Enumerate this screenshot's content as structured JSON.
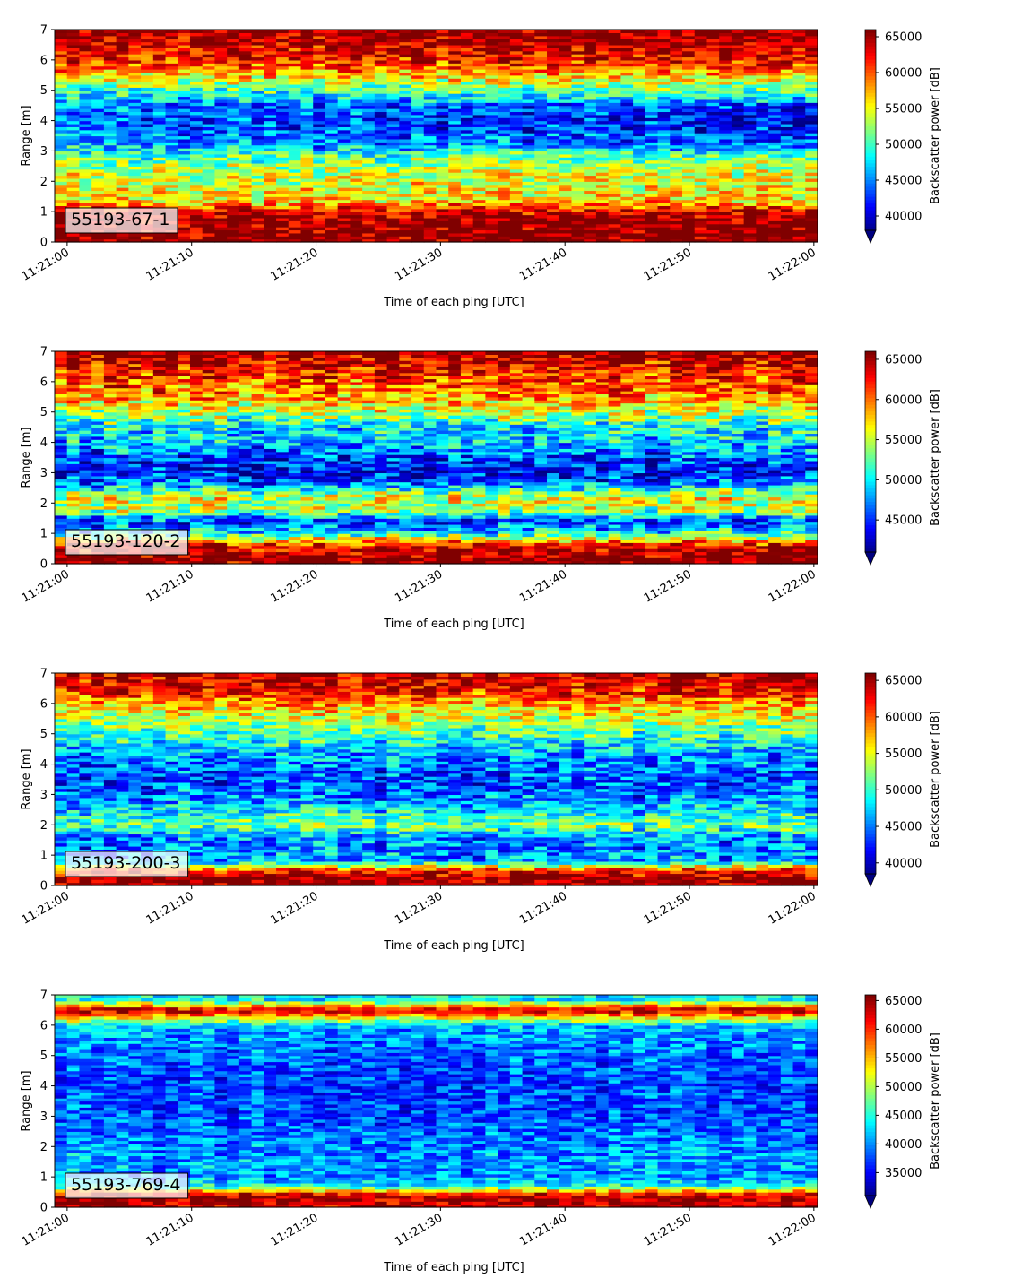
{
  "chart_data": [
    {
      "type": "heatmap",
      "label": "55193-67-1",
      "xlabel": "Time of each ping [UTC]",
      "ylabel": "Range [m]",
      "xticks": [
        "11:21:00",
        "11:21:10",
        "11:21:20",
        "11:21:30",
        "11:21:40",
        "11:21:50",
        "11:22:00"
      ],
      "xlim": [
        "11:21:00",
        "11:22:00"
      ],
      "yticks": [
        0,
        1,
        2,
        3,
        4,
        5,
        6,
        7
      ],
      "ylim": [
        0,
        7
      ],
      "colorbar": {
        "label": "Backscatter power [dB]",
        "ticks": [
          40000,
          45000,
          50000,
          55000,
          60000,
          65000
        ],
        "range": [
          38000,
          66000
        ],
        "extend": "min",
        "colormap": "jet"
      },
      "profile": [
        {
          "range_m": 0.2,
          "value": 66000
        },
        {
          "range_m": 0.6,
          "value": 66000
        },
        {
          "range_m": 1.0,
          "value": 64000
        },
        {
          "range_m": 1.3,
          "value": 57000
        },
        {
          "range_m": 1.8,
          "value": 55000
        },
        {
          "range_m": 2.3,
          "value": 54000
        },
        {
          "range_m": 2.8,
          "value": 51000
        },
        {
          "range_m": 3.2,
          "value": 47000
        },
        {
          "range_m": 3.7,
          "value": 45000
        },
        {
          "range_m": 4.1,
          "value": 44000
        },
        {
          "range_m": 4.6,
          "value": 46000
        },
        {
          "range_m": 5.0,
          "value": 50000
        },
        {
          "range_m": 5.5,
          "value": 57000
        },
        {
          "range_m": 6.0,
          "value": 62000
        },
        {
          "range_m": 6.5,
          "value": 64000
        },
        {
          "range_m": 7.0,
          "value": 66000
        }
      ]
    },
    {
      "type": "heatmap",
      "label": "55193-120-2",
      "xlabel": "Time of each ping [UTC]",
      "ylabel": "Range [m]",
      "xticks": [
        "11:21:00",
        "11:21:10",
        "11:21:20",
        "11:21:30",
        "11:21:40",
        "11:21:50",
        "11:22:00"
      ],
      "xlim": [
        "11:21:00",
        "11:22:00"
      ],
      "yticks": [
        0,
        1,
        2,
        3,
        4,
        5,
        6,
        7
      ],
      "ylim": [
        0,
        7
      ],
      "colorbar": {
        "label": "Backscatter power [dB]",
        "ticks": [
          45000,
          50000,
          55000,
          60000,
          65000
        ],
        "range": [
          41000,
          66000
        ],
        "extend": "min",
        "colormap": "jet"
      },
      "profile": [
        {
          "range_m": 0.2,
          "value": 66000
        },
        {
          "range_m": 0.6,
          "value": 64000
        },
        {
          "range_m": 1.0,
          "value": 51000
        },
        {
          "range_m": 1.4,
          "value": 45000
        },
        {
          "range_m": 1.8,
          "value": 55000
        },
        {
          "range_m": 2.2,
          "value": 56000
        },
        {
          "range_m": 2.6,
          "value": 48000
        },
        {
          "range_m": 3.0,
          "value": 44000
        },
        {
          "range_m": 3.5,
          "value": 46000
        },
        {
          "range_m": 4.0,
          "value": 49000
        },
        {
          "range_m": 4.5,
          "value": 50000
        },
        {
          "range_m": 5.0,
          "value": 55000
        },
        {
          "range_m": 5.5,
          "value": 59000
        },
        {
          "range_m": 6.0,
          "value": 61000
        },
        {
          "range_m": 6.5,
          "value": 63000
        },
        {
          "range_m": 7.0,
          "value": 66000
        }
      ]
    },
    {
      "type": "heatmap",
      "label": "55193-200-3",
      "xlabel": "Time of each ping [UTC]",
      "ylabel": "Range [m]",
      "xticks": [
        "11:21:00",
        "11:21:10",
        "11:21:20",
        "11:21:30",
        "11:21:40",
        "11:21:50",
        "11:22:00"
      ],
      "xlim": [
        "11:21:00",
        "11:22:00"
      ],
      "yticks": [
        0,
        1,
        2,
        3,
        4,
        5,
        6,
        7
      ],
      "ylim": [
        0,
        7
      ],
      "colorbar": {
        "label": "Backscatter power [dB]",
        "ticks": [
          40000,
          45000,
          50000,
          55000,
          60000,
          65000
        ],
        "range": [
          38500,
          66000
        ],
        "extend": "min",
        "colormap": "jet"
      },
      "profile": [
        {
          "range_m": 0.2,
          "value": 66000
        },
        {
          "range_m": 0.5,
          "value": 62000
        },
        {
          "range_m": 0.8,
          "value": 47000
        },
        {
          "range_m": 1.2,
          "value": 45000
        },
        {
          "range_m": 1.6,
          "value": 46000
        },
        {
          "range_m": 2.0,
          "value": 52000
        },
        {
          "range_m": 2.5,
          "value": 48000
        },
        {
          "range_m": 3.0,
          "value": 45000
        },
        {
          "range_m": 3.5,
          "value": 44000
        },
        {
          "range_m": 4.0,
          "value": 45000
        },
        {
          "range_m": 4.5,
          "value": 47000
        },
        {
          "range_m": 5.0,
          "value": 51000
        },
        {
          "range_m": 5.5,
          "value": 54000
        },
        {
          "range_m": 6.0,
          "value": 58000
        },
        {
          "range_m": 6.5,
          "value": 63000
        },
        {
          "range_m": 7.0,
          "value": 64000
        }
      ]
    },
    {
      "type": "heatmap",
      "label": "55193-769-4",
      "xlabel": "Time of each ping [UTC]",
      "ylabel": "Range [m]",
      "xticks": [
        "11:21:00",
        "11:21:10",
        "11:21:20",
        "11:21:30",
        "11:21:40",
        "11:21:50",
        "11:22:00"
      ],
      "xlim": [
        "11:21:00",
        "11:22:00"
      ],
      "yticks": [
        0,
        1,
        2,
        3,
        4,
        5,
        6,
        7
      ],
      "ylim": [
        0,
        7
      ],
      "colorbar": {
        "label": "Backscatter power [dB]",
        "ticks": [
          35000,
          40000,
          45000,
          50000,
          55000,
          60000,
          65000
        ],
        "range": [
          31000,
          66000
        ],
        "extend": "min",
        "colormap": "jet"
      },
      "profile": [
        {
          "range_m": 0.15,
          "value": 64000
        },
        {
          "range_m": 0.4,
          "value": 65000
        },
        {
          "range_m": 0.7,
          "value": 45000
        },
        {
          "range_m": 1.0,
          "value": 40000
        },
        {
          "range_m": 1.5,
          "value": 41000
        },
        {
          "range_m": 2.0,
          "value": 40000
        },
        {
          "range_m": 2.5,
          "value": 39000
        },
        {
          "range_m": 3.0,
          "value": 38000
        },
        {
          "range_m": 3.5,
          "value": 38000
        },
        {
          "range_m": 4.0,
          "value": 38000
        },
        {
          "range_m": 4.5,
          "value": 38000
        },
        {
          "range_m": 5.0,
          "value": 39000
        },
        {
          "range_m": 5.5,
          "value": 40000
        },
        {
          "range_m": 6.0,
          "value": 42000
        },
        {
          "range_m": 6.5,
          "value": 64000
        },
        {
          "range_m": 6.85,
          "value": 44000
        }
      ]
    }
  ]
}
